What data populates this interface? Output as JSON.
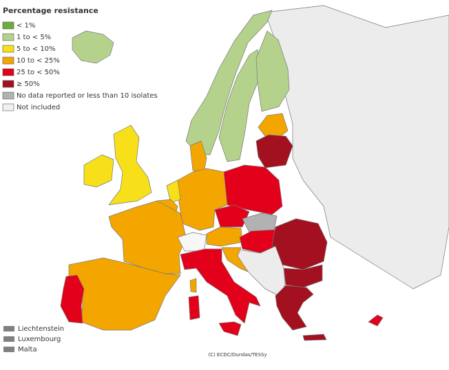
{
  "legend": {
    "title": "Percentage resistance",
    "items": [
      {
        "label": "< 1%",
        "color": "#6aad3d"
      },
      {
        "label": "1 to < 5%",
        "color": "#b5d28c"
      },
      {
        "label": "5 to < 10%",
        "color": "#f7e01a"
      },
      {
        "label": "10 to < 25%",
        "color": "#f4a600"
      },
      {
        "label": "25 to < 50%",
        "color": "#e2001a"
      },
      {
        "label": "≥ 50%",
        "color": "#a3101f"
      },
      {
        "label": "No data reported or less than 10 isolates",
        "color": "#b2b2b2"
      },
      {
        "label": "Not included",
        "color": "#f0f0f0"
      }
    ]
  },
  "small_countries": {
    "color": "#808080",
    "items": [
      "Liechtenstein",
      "Luxembourg",
      "Malta"
    ]
  },
  "credit": "(C) ECDC/Dundas/TESSy"
}
